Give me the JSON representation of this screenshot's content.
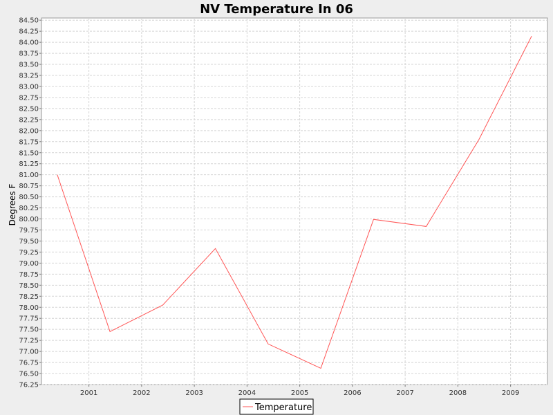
{
  "chart_data": {
    "type": "line",
    "title": "NV Temperature In 06",
    "xlabel": "",
    "ylabel": "Degrees F",
    "x": [
      2000.4,
      2001.4,
      2002.4,
      2003.4,
      2004.4,
      2005.4,
      2006.4,
      2007.4,
      2008.4,
      2009.4
    ],
    "x_tick_labels": [
      "2001",
      "2002",
      "2003",
      "2004",
      "2005",
      "2006",
      "2007",
      "2008",
      "2009"
    ],
    "y_tick_labels": [
      "76.25",
      "76.50",
      "76.75",
      "77.00",
      "77.25",
      "77.50",
      "77.75",
      "78.00",
      "78.25",
      "78.50",
      "78.75",
      "79.00",
      "79.25",
      "79.50",
      "79.75",
      "80.00",
      "80.25",
      "80.50",
      "80.75",
      "81.00",
      "81.25",
      "81.50",
      "81.75",
      "82.00",
      "82.25",
      "82.50",
      "82.75",
      "83.00",
      "83.25",
      "83.50",
      "83.75",
      "84.00",
      "84.25",
      "84.50"
    ],
    "ylim": [
      76.25,
      84.55
    ],
    "xlim": [
      2000.1,
      2009.7
    ],
    "grid": true,
    "legend_position": "bottom",
    "series": [
      {
        "name": "Temperature",
        "color": "#ff5555",
        "values": [
          81.0,
          77.45,
          78.05,
          79.33,
          77.17,
          76.62,
          79.99,
          79.83,
          81.8,
          84.14
        ]
      }
    ]
  }
}
